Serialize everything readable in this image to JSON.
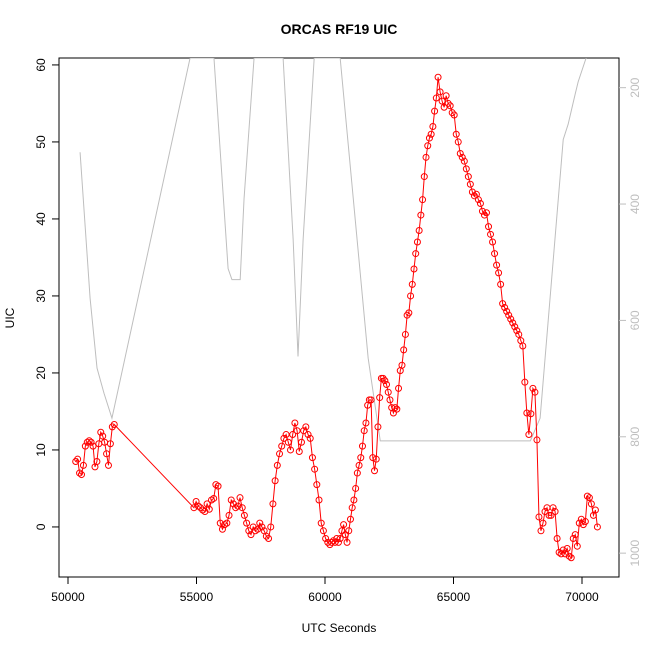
{
  "chart_data": {
    "type": "line",
    "title": "ORCAS RF19 UIC",
    "x_label": "UTC Seconds",
    "y_label": "UIC",
    "xlim": [
      49650,
      71440
    ],
    "xticks": [
      50000,
      55000,
      60000,
      65000,
      70000
    ],
    "ylim": [
      -6.5,
      60.9
    ],
    "yticks": [
      0,
      10,
      20,
      30,
      40,
      50,
      60
    ],
    "y2lim": [
      1041,
      149
    ],
    "y2ticks": [
      200,
      400,
      600,
      800,
      1000
    ],
    "series": [
      {
        "color": "#ff0000",
        "markers": true,
        "x": [
          50300,
          50375,
          50450,
          50525,
          50600,
          50675,
          50750,
          50825,
          50900,
          50975,
          51050,
          51125,
          51200,
          51275,
          51350,
          51425,
          51500,
          51575,
          51650,
          51725,
          51800,
          54900,
          54985,
          55071,
          55156,
          55242,
          55327,
          55412,
          55498,
          55583,
          55669,
          55754,
          55839,
          55925,
          56010,
          56096,
          56181,
          56266,
          56352,
          56437,
          56523,
          56608,
          56693,
          56779,
          56864,
          56950,
          57035,
          57120,
          57206,
          57291,
          57377,
          57462,
          57547,
          57633,
          57718,
          57804,
          57889,
          57974,
          58060,
          58145,
          58231,
          58316,
          58401,
          58487,
          58572,
          58658,
          58743,
          58828,
          58914,
          58999,
          59085,
          59170,
          59255,
          59341,
          59426,
          59512,
          59597,
          59682,
          59768,
          59853,
          59939,
          60024,
          60109,
          60190,
          60257,
          60324,
          60390,
          60457,
          60524,
          60591,
          60658,
          60724,
          60791,
          60858,
          60925,
          60992,
          61058,
          61125,
          61192,
          61259,
          61326,
          61392,
          61459,
          61526,
          61593,
          61660,
          61726,
          61793,
          61860,
          61927,
          61994,
          62060,
          62127,
          62194,
          62261,
          62328,
          62394,
          62461,
          62528,
          62595,
          62662,
          62728,
          62795,
          62862,
          62929,
          62996,
          63062,
          63129,
          63196,
          63263,
          63330,
          63396,
          63463,
          63530,
          63597,
          63664,
          63730,
          63797,
          63864,
          63931,
          63998,
          64064,
          64131,
          64198,
          64265,
          64332,
          64400,
          64479,
          64557,
          64636,
          64714,
          64793,
          64871,
          64950,
          65028,
          65107,
          65185,
          65264,
          65342,
          65421,
          65499,
          65578,
          65656,
          65735,
          65813,
          65892,
          65970,
          66049,
          66127,
          66206,
          66284,
          66363,
          66441,
          66520,
          66598,
          66677,
          66755,
          66834,
          66912,
          66991,
          67069,
          67148,
          67226,
          67305,
          67383,
          67462,
          67540,
          67619,
          67697,
          67776,
          67854,
          67933,
          68011,
          68090,
          68168,
          68247,
          68325,
          68404,
          68482,
          68561,
          68639,
          68718,
          68796,
          68875,
          68953,
          69032,
          69110,
          69189,
          69267,
          69346,
          69424,
          69503,
          69581,
          69660,
          69738,
          69817,
          69895,
          69974,
          70052,
          70131,
          70209,
          70288,
          70366,
          70445,
          70523,
          70600
        ],
        "values": [
          8.5,
          8.8,
          7,
          6.8,
          8,
          10.5,
          11,
          11.2,
          11,
          10.5,
          7.8,
          8.5,
          10.8,
          12.3,
          11.8,
          11,
          9.5,
          8,
          10.8,
          13,
          13.3,
          2.5,
          3.3,
          2.7,
          2.5,
          2.2,
          2.0,
          3,
          2.3,
          3.5,
          3.7,
          5.5,
          5.3,
          0.5,
          -0.3,
          0.3,
          0.5,
          1.5,
          3.5,
          3,
          2.5,
          2.7,
          3.8,
          2.5,
          1.5,
          0.5,
          -0.5,
          -1,
          0,
          -0.5,
          -0.3,
          0.5,
          0,
          -0.5,
          -1.2,
          -1.5,
          0,
          3,
          6,
          8,
          9.5,
          10.5,
          11.5,
          12,
          11,
          10,
          12,
          13.5,
          12.5,
          9.8,
          11,
          12.5,
          13,
          12,
          11.5,
          9,
          7.5,
          5.5,
          3.5,
          0.5,
          -0.5,
          -1.5,
          -2,
          -2.3,
          -2,
          -1.8,
          -2,
          -1.5,
          -2,
          -1.5,
          -0.5,
          0.3,
          -1,
          -2,
          -0.5,
          1,
          2.5,
          3.5,
          5,
          7,
          8,
          9,
          10.5,
          12.5,
          13.5,
          15.8,
          16.5,
          16.5,
          9,
          7.3,
          8.8,
          13,
          16.8,
          19.3,
          19.3,
          19,
          18.5,
          17.5,
          16.5,
          15.5,
          14.8,
          15.5,
          15.3,
          18,
          20.3,
          21,
          23,
          25,
          27.5,
          27.8,
          30,
          31.5,
          33.5,
          35.5,
          37,
          38.5,
          40.5,
          42.5,
          45.5,
          48,
          49.5,
          50.5,
          51,
          52,
          54,
          55.7,
          58.4,
          56.5,
          55.3,
          54.5,
          56,
          55,
          54.7,
          53.8,
          53.5,
          51,
          50,
          48.5,
          48,
          47.5,
          46.5,
          45.5,
          44.5,
          43.5,
          43,
          43.2,
          42.5,
          42,
          41,
          40.5,
          40.8,
          39,
          38,
          37,
          35.5,
          34,
          33,
          31.5,
          29,
          28.5,
          28,
          27.5,
          27,
          26.5,
          26,
          25.5,
          25,
          24.2,
          23.5,
          18.8,
          14.8,
          12,
          14.7,
          18,
          17.5,
          11.3,
          1.3,
          -0.5,
          0.5,
          2,
          2.5,
          1.5,
          1.5,
          2.5,
          2,
          -1.5,
          -3.3,
          -3.5,
          -3,
          -3.5,
          -2.8,
          -3.8,
          -4,
          -1.5,
          -1,
          -2.5,
          0.5,
          1,
          0.3,
          0.7,
          4,
          3.8,
          3,
          1.5,
          2.2,
          0
        ]
      },
      {
        "color": "#bebebe",
        "axis": "y2",
        "markers": false,
        "x": [
          50470,
          50860,
          51130,
          51400,
          51710,
          54750,
          55680,
          56230,
          56380,
          56700,
          56850,
          57240,
          58370,
          58760,
          58950,
          59150,
          59580,
          60590,
          61680,
          62150,
          67990,
          68370,
          69270,
          69460,
          69730,
          69850,
          70160
        ],
        "values": [
          311,
          562,
          682,
          725,
          768,
          149,
          149,
          511,
          530,
          530,
          391,
          149,
          149,
          460,
          662,
          460,
          149,
          149,
          665,
          807,
          807,
          768,
          289,
          263,
          212,
          190,
          149
        ]
      }
    ]
  }
}
